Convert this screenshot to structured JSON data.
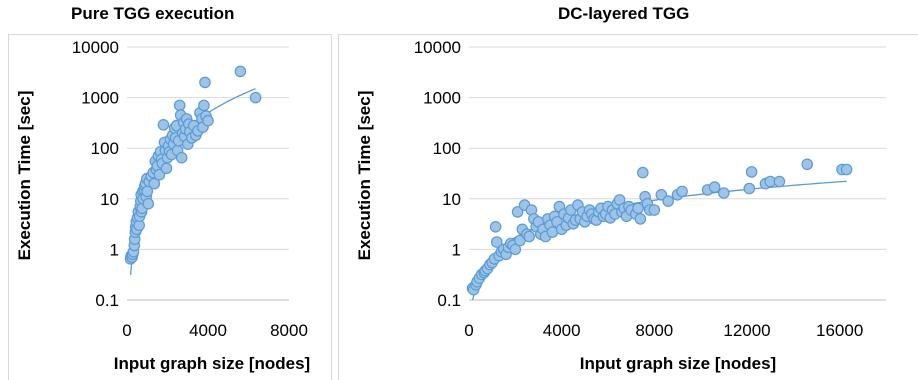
{
  "chart_data": [
    {
      "type": "scatter",
      "title": "Pure TGG execution",
      "xlabel": "Input graph size [nodes]",
      "ylabel": "Execution Time [sec]",
      "xlim": [
        0,
        8000
      ],
      "ylim": [
        0.1,
        10000
      ],
      "yscale": "log",
      "xticks": [
        "0",
        "4000",
        "8000"
      ],
      "yticks": [
        "0.1",
        "1",
        "10",
        "100",
        "1000",
        "10000"
      ],
      "grid": "horizontal",
      "legend": "none",
      "color": "#5b9bd5",
      "series": [
        {
          "points": [
            [
              180,
              0.65
            ],
            [
              200,
              0.75
            ],
            [
              250,
              0.7
            ],
            [
              280,
              0.8
            ],
            [
              320,
              0.9
            ],
            [
              360,
              1.2
            ],
            [
              380,
              1.6
            ],
            [
              410,
              2.2
            ],
            [
              430,
              2.8
            ],
            [
              460,
              3.5
            ],
            [
              480,
              2.5
            ],
            [
              520,
              4.2
            ],
            [
              560,
              5.5
            ],
            [
              600,
              3.0
            ],
            [
              620,
              4.5
            ],
            [
              650,
              7
            ],
            [
              680,
              9
            ],
            [
              700,
              12
            ],
            [
              720,
              5.5
            ],
            [
              750,
              6.5
            ],
            [
              780,
              14
            ],
            [
              800,
              10
            ],
            [
              850,
              15
            ],
            [
              880,
              18
            ],
            [
              920,
              20
            ],
            [
              950,
              11
            ],
            [
              980,
              25
            ],
            [
              1000,
              14
            ],
            [
              1050,
              8
            ],
            [
              1100,
              22
            ],
            [
              1200,
              28
            ],
            [
              1300,
              33
            ],
            [
              1350,
              20
            ],
            [
              1400,
              55
            ],
            [
              1450,
              38
            ],
            [
              1500,
              45
            ],
            [
              1550,
              70
            ],
            [
              1600,
              30
            ],
            [
              1650,
              85
            ],
            [
              1700,
              60
            ],
            [
              1750,
              50
            ],
            [
              1800,
              290
            ],
            [
              1850,
              130
            ],
            [
              1900,
              90
            ],
            [
              1950,
              40
            ],
            [
              2000,
              65
            ],
            [
              2050,
              110
            ],
            [
              2100,
              85
            ],
            [
              2150,
              150
            ],
            [
              2200,
              75
            ],
            [
              2250,
              180
            ],
            [
              2300,
              120
            ],
            [
              2350,
              250
            ],
            [
              2400,
              160
            ],
            [
              2450,
              280
            ],
            [
              2500,
              90
            ],
            [
              2550,
              140
            ],
            [
              2600,
              700
            ],
            [
              2650,
              450
            ],
            [
              2700,
              65
            ],
            [
              2750,
              200
            ],
            [
              2800,
              320
            ],
            [
              2850,
              170
            ],
            [
              2900,
              240
            ],
            [
              2950,
              380
            ],
            [
              3000,
              120
            ],
            [
              3050,
              300
            ],
            [
              3100,
              210
            ],
            [
              3200,
              160
            ],
            [
              3300,
              280
            ],
            [
              3400,
              180
            ],
            [
              3500,
              220
            ],
            [
              3600,
              500
            ],
            [
              3700,
              380
            ],
            [
              3750,
              260
            ],
            [
              3800,
              700
            ],
            [
              3850,
              2000
            ],
            [
              3900,
              430
            ],
            [
              4000,
              350
            ],
            [
              5600,
              3300
            ],
            [
              6350,
              1000
            ]
          ]
        }
      ],
      "trendline": {
        "type": "power"
      }
    },
    {
      "type": "scatter",
      "title": "DC-layered TGG",
      "xlabel": "Input graph size [nodes]",
      "ylabel": "Execution Time [sec]",
      "xlim": [
        0,
        18000
      ],
      "ylim": [
        0.1,
        10000
      ],
      "yscale": "log",
      "xticks": [
        "0",
        "4000",
        "8000",
        "12000",
        "16000"
      ],
      "yticks": [
        "0.1",
        "1",
        "10",
        "100",
        "1000",
        "10000"
      ],
      "grid": "horizontal",
      "legend": "none",
      "color": "#5b9bd5",
      "series": [
        {
          "points": [
            [
              150,
              0.17
            ],
            [
              200,
              0.16
            ],
            [
              300,
              0.2
            ],
            [
              350,
              0.23
            ],
            [
              450,
              0.27
            ],
            [
              550,
              0.32
            ],
            [
              650,
              0.35
            ],
            [
              700,
              0.38
            ],
            [
              800,
              0.42
            ],
            [
              900,
              0.5
            ],
            [
              1000,
              0.55
            ],
            [
              1100,
              0.65
            ],
            [
              1150,
              2.8
            ],
            [
              1200,
              1.4
            ],
            [
              1300,
              0.75
            ],
            [
              1400,
              0.9
            ],
            [
              1500,
              1.0
            ],
            [
              1600,
              0.8
            ],
            [
              1700,
              1.1
            ],
            [
              1800,
              1.3
            ],
            [
              1900,
              1.2
            ],
            [
              2000,
              1.0
            ],
            [
              2100,
              5.5
            ],
            [
              2200,
              1.5
            ],
            [
              2300,
              2.5
            ],
            [
              2400,
              7.5
            ],
            [
              2500,
              2.0
            ],
            [
              2600,
              1.8
            ],
            [
              2700,
              6.0
            ],
            [
              2800,
              4.0
            ],
            [
              2900,
              2.8
            ],
            [
              3000,
              3.5
            ],
            [
              3100,
              2.0
            ],
            [
              3200,
              2.5
            ],
            [
              3300,
              1.8
            ],
            [
              3400,
              4.0
            ],
            [
              3500,
              3.0
            ],
            [
              3600,
              2.2
            ],
            [
              3700,
              4.5
            ],
            [
              3800,
              3.5
            ],
            [
              3900,
              7.0
            ],
            [
              4000,
              2.5
            ],
            [
              4100,
              5.0
            ],
            [
              4200,
              3.0
            ],
            [
              4300,
              4.2
            ],
            [
              4400,
              6.0
            ],
            [
              4500,
              3.2
            ],
            [
              4600,
              3.8
            ],
            [
              4700,
              7.5
            ],
            [
              4800,
              4.0
            ],
            [
              4900,
              5.5
            ],
            [
              5000,
              3.5
            ],
            [
              5100,
              4.5
            ],
            [
              5200,
              6.0
            ],
            [
              5300,
              5.0
            ],
            [
              5400,
              4.0
            ],
            [
              5500,
              3.8
            ],
            [
              5600,
              5.5
            ],
            [
              5700,
              6.5
            ],
            [
              5800,
              4.5
            ],
            [
              5900,
              5.0
            ],
            [
              6000,
              7.0
            ],
            [
              6100,
              4.2
            ],
            [
              6200,
              6.0
            ],
            [
              6300,
              5.0
            ],
            [
              6400,
              8.0
            ],
            [
              6500,
              9.5
            ],
            [
              6600,
              5.5
            ],
            [
              6700,
              6.5
            ],
            [
              6800,
              4.5
            ],
            [
              6900,
              7.0
            ],
            [
              7000,
              6.0
            ],
            [
              7200,
              5.0
            ],
            [
              7300,
              6.5
            ],
            [
              7400,
              4.0
            ],
            [
              7500,
              33
            ],
            [
              7600,
              11
            ],
            [
              7700,
              8.0
            ],
            [
              7800,
              6.0
            ],
            [
              8000,
              6.0
            ],
            [
              8300,
              12
            ],
            [
              8600,
              9.0
            ],
            [
              9000,
              12
            ],
            [
              9200,
              14
            ],
            [
              10300,
              15
            ],
            [
              10600,
              17
            ],
            [
              11000,
              13
            ],
            [
              12100,
              16
            ],
            [
              12200,
              34
            ],
            [
              12800,
              20
            ],
            [
              13000,
              22
            ],
            [
              13400,
              22
            ],
            [
              14600,
              48
            ],
            [
              16100,
              38
            ],
            [
              16300,
              38
            ]
          ]
        }
      ],
      "trendline": {
        "type": "logarithmic"
      }
    }
  ]
}
